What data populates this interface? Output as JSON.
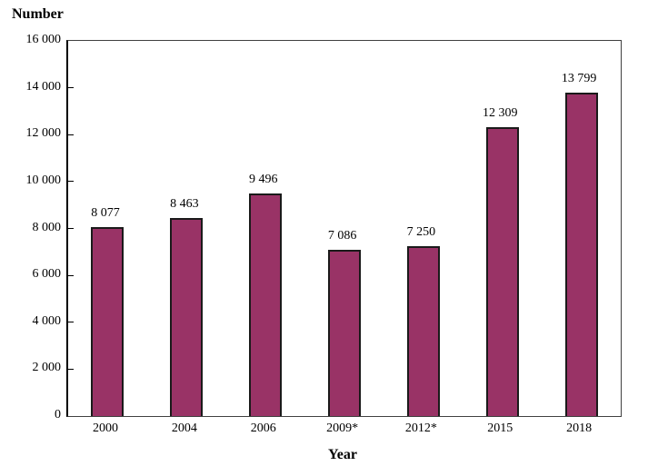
{
  "chart_data": {
    "type": "bar",
    "title": "",
    "ylabel": "Number",
    "xlabel": "Year",
    "categories": [
      "2000",
      "2004",
      "2006",
      "2009*",
      "2012*",
      "2015",
      "2018"
    ],
    "values": [
      8077,
      8463,
      9496,
      7086,
      7250,
      12309,
      13799
    ],
    "value_labels": [
      "8 077",
      "8 463",
      "9 496",
      "7 086",
      "7 250",
      "12 309",
      "13 799"
    ],
    "ylim": [
      0,
      16000
    ],
    "ytick_step": 2000,
    "yticks": [
      0,
      2000,
      4000,
      6000,
      8000,
      10000,
      12000,
      14000,
      16000
    ],
    "ytick_labels": [
      "0",
      "2 000",
      "4 000",
      "6 000",
      "8 000",
      "10 000",
      "12 000",
      "14 000",
      "16 000"
    ],
    "grid": false,
    "legend_position": "none",
    "bar_color": "#993366",
    "bar_border_color": "#1a1a1a",
    "axis_color": "#000000"
  }
}
